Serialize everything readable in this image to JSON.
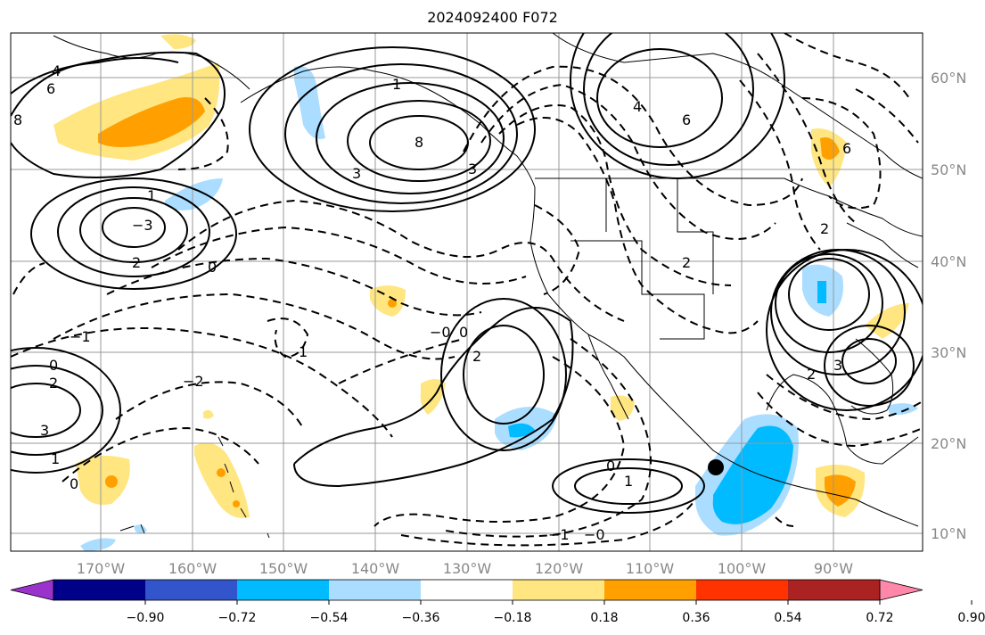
{
  "title": "2024092400 F072",
  "lon_labels": [
    "170°W",
    "160°W",
    "150°W",
    "140°W",
    "130°W",
    "120°W",
    "110°W",
    "100°W",
    "90°W"
  ],
  "lat_labels": [
    "60°N",
    "50°N",
    "40°N",
    "30°N",
    "20°N",
    "10°N"
  ],
  "colorbar": {
    "colors": [
      "#9933cc",
      "#000088",
      "#3355cc",
      "#00bbff",
      "#aaddff",
      "#ffffff",
      "#ffe680",
      "#ffa000",
      "#ff3300",
      "#aa2222",
      "#ff88aa"
    ],
    "ticks": [
      "−0.90",
      "−0.72",
      "−0.54",
      "−0.36",
      "−0.18",
      "0.18",
      "0.36",
      "0.54",
      "0.72",
      "0.90"
    ]
  },
  "contour_labels": [
    "8",
    "6",
    "4",
    "3",
    "2",
    "1",
    "0",
    "−0",
    "−1",
    "−2",
    "−3",
    "4",
    "6",
    "8",
    "0",
    "2",
    "3",
    "1",
    "0",
    "−1",
    "2",
    "3",
    "2",
    "0",
    "1",
    "2",
    "1",
    "0",
    "−0",
    "6",
    "2",
    "3",
    "1"
  ],
  "marker": "storm-center"
}
